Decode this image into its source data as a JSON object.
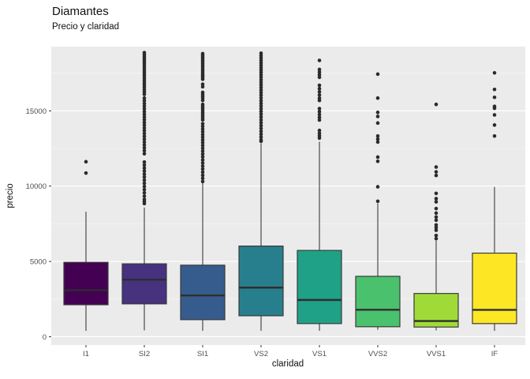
{
  "chart_data": {
    "type": "boxplot",
    "title": "Diamantes",
    "subtitle": "Precio y claridad",
    "xlabel": "claridad",
    "ylabel": "precio",
    "categories": [
      "I1",
      "SI2",
      "SI1",
      "VS2",
      "VS1",
      "VVS2",
      "VVS1",
      "IF"
    ],
    "y_ticks": [
      0,
      5000,
      10000,
      15000
    ],
    "y_minor_ticks": [
      2500,
      7500,
      12500,
      17500
    ],
    "ylim": [
      -556,
      19270
    ],
    "legend": "none",
    "grid": "on",
    "colors": {
      "panel_bg": "#EBEBEB",
      "major_grid": "#FFFFFF",
      "minor_grid": "#F5F5F5",
      "box_border": "#3A3A3A",
      "median_line": "#2E2E2E",
      "whisker": "#3A3A3A",
      "outlier": "#2B2B2B",
      "tick_label": "#4D4D4D",
      "tick_mark": "#333333"
    },
    "series": [
      {
        "category": "I1",
        "color": "#440154",
        "whisker_low": 390,
        "q1": 2120,
        "median": 3085,
        "q3": 4940,
        "whisker_high": 8300,
        "outliers": [
          11620,
          10870
        ]
      },
      {
        "category": "SI2",
        "color": "#46327E",
        "whisker_low": 420,
        "q1": 2180,
        "median": 3790,
        "q3": 4840,
        "whisker_high": 8580,
        "outliers": [
          18870,
          18750,
          18630,
          18500,
          18380,
          18250,
          18120,
          17990,
          17860,
          17720,
          17580,
          17440,
          17300,
          17150,
          17000,
          16850,
          16700,
          16550,
          16400,
          16250,
          16100,
          15850,
          15670,
          15490,
          15310,
          15130,
          14950,
          14770,
          14590,
          14410,
          14230,
          14050,
          13870,
          13690,
          13500,
          13310,
          13120,
          12930,
          12740,
          12550,
          12350,
          12150,
          11600,
          11400,
          11200,
          11000,
          10800,
          10600,
          10400,
          10190,
          9980,
          9770,
          9560,
          9340,
          9120,
          8980,
          8840
        ]
      },
      {
        "category": "SI1",
        "color": "#365C8D",
        "whisker_low": 390,
        "q1": 1130,
        "median": 2740,
        "q3": 4750,
        "whisker_high": 10200,
        "outliers": [
          18800,
          18690,
          18580,
          18470,
          18360,
          18250,
          18140,
          18030,
          17910,
          17790,
          17670,
          17550,
          17430,
          17320,
          17210,
          17100,
          16770,
          16600,
          16230,
          16100,
          15970,
          15840,
          15700,
          15430,
          15300,
          15170,
          15040,
          14910,
          14780,
          14650,
          14520,
          14400,
          14150,
          13970,
          13790,
          13610,
          13430,
          13250,
          13070,
          12890,
          12700,
          12510,
          12320,
          12130,
          11940,
          11740,
          11540,
          11340,
          11140,
          10930,
          10720,
          10520,
          10310
        ]
      },
      {
        "category": "VS2",
        "color": "#277F8E",
        "whisker_low": 390,
        "q1": 1390,
        "median": 3260,
        "q3": 6020,
        "whisker_high": 12840,
        "outliers": [
          18830,
          18670,
          18510,
          18350,
          18190,
          18030,
          17870,
          17710,
          17550,
          17390,
          17230,
          17060,
          16890,
          16720,
          16550,
          16380,
          16210,
          16040,
          15860,
          15680,
          15500,
          15320,
          15140,
          14960,
          14780,
          14590,
          14400,
          14210,
          14020,
          13830,
          13640,
          13450,
          13260,
          13070,
          12980
        ]
      },
      {
        "category": "VS1",
        "color": "#1FA187",
        "whisker_low": 390,
        "q1": 870,
        "median": 2440,
        "q3": 5730,
        "whisker_high": 12950,
        "outliers": [
          18350,
          17750,
          17570,
          17400,
          17230,
          16700,
          16480,
          16270,
          16060,
          15850,
          15690,
          15150,
          14950,
          14760,
          14570,
          14390,
          13700,
          13510,
          13340,
          13190
        ]
      },
      {
        "category": "VVS2",
        "color": "#4AC16D",
        "whisker_low": 460,
        "q1": 660,
        "median": 1790,
        "q3": 4010,
        "whisker_high": 8850,
        "outliers": [
          17440,
          15850,
          14900,
          14630,
          14190,
          13330,
          13130,
          12930,
          11930,
          11650,
          9955,
          8995
        ]
      },
      {
        "category": "VVS1",
        "color": "#A0DA39",
        "whisker_low": 420,
        "q1": 640,
        "median": 1040,
        "q3": 2870,
        "whisker_high": 6370,
        "outliers": [
          15430,
          11270,
          10950,
          10710,
          9520,
          9170,
          8960,
          8510,
          8210,
          7950,
          7740,
          7420,
          7250,
          7070,
          6720,
          6510
        ]
      },
      {
        "category": "IF",
        "color": "#FDE725",
        "whisker_low": 390,
        "q1": 870,
        "median": 1780,
        "q3": 5550,
        "whisker_high": 9950,
        "outliers": [
          17525,
          16425,
          15900,
          15300,
          15170,
          14730,
          14060,
          13330
        ]
      }
    ]
  }
}
